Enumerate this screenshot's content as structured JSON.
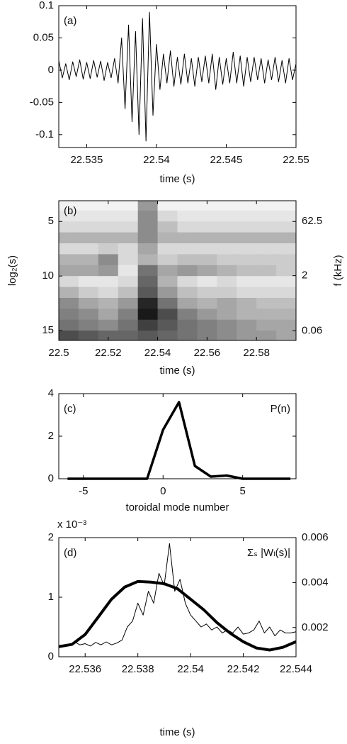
{
  "chart_data": [
    {
      "type": "line",
      "label": "(a)",
      "xlabel": "time (s)",
      "xlim": [
        22.533,
        22.55
      ],
      "xticks": [
        22.535,
        22.54,
        22.545,
        22.55
      ],
      "ylim": [
        -0.12,
        0.1
      ],
      "yticks": [
        -0.1,
        -0.05,
        0,
        0.05,
        0.1
      ],
      "series": [
        {
          "color": "#000000",
          "line_width": 1,
          "x": [
            22.533,
            22.53325,
            22.5335,
            22.53375,
            22.534,
            22.53425,
            22.5345,
            22.53475,
            22.535,
            22.53525,
            22.5355,
            22.53575,
            22.536,
            22.53625,
            22.5365,
            22.53675,
            22.537,
            22.53725,
            22.5375,
            22.53775,
            22.538,
            22.53825,
            22.5385,
            22.53875,
            22.539,
            22.53925,
            22.5395,
            22.53975,
            22.54,
            22.54025,
            22.5405,
            22.54075,
            22.541,
            22.54125,
            22.5415,
            22.54175,
            22.542,
            22.54225,
            22.5425,
            22.54275,
            22.543,
            22.54325,
            22.5435,
            22.54375,
            22.544,
            22.54425,
            22.5445,
            22.54475,
            22.545,
            22.54525,
            22.5455,
            22.54575,
            22.546,
            22.54625,
            22.5465,
            22.54675,
            22.547,
            22.54725,
            22.5475,
            22.54775,
            22.548,
            22.54825,
            22.5485,
            22.54875,
            22.549,
            22.54925,
            22.5495,
            22.54975,
            22.55
          ],
          "values": [
            0.015,
            -0.012,
            0.01,
            -0.015,
            0.013,
            -0.01,
            0.016,
            -0.014,
            0.012,
            -0.013,
            0.015,
            -0.011,
            0.014,
            -0.016,
            0.012,
            -0.012,
            0.018,
            -0.02,
            0.05,
            -0.06,
            0.07,
            -0.08,
            0.06,
            -0.1,
            0.08,
            -0.11,
            0.09,
            -0.07,
            0.04,
            -0.03,
            0.025,
            -0.02,
            0.03,
            -0.025,
            0.02,
            -0.022,
            0.025,
            -0.02,
            0.018,
            -0.025,
            0.02,
            -0.018,
            0.022,
            -0.02,
            0.025,
            -0.03,
            0.02,
            -0.022,
            0.018,
            -0.02,
            0.028,
            -0.02,
            0.022,
            -0.025,
            0.02,
            -0.018,
            0.02,
            -0.015,
            0.018,
            -0.02,
            0.016,
            -0.015,
            0.02,
            -0.018,
            0.015,
            -0.02,
            0.018,
            -0.015,
            0.01
          ]
        }
      ]
    },
    {
      "type": "heatmap",
      "label": "(b)",
      "xlabel": "time (s)",
      "ylabel": "log₂(s)",
      "y2label": "f (kHz)",
      "xlim": [
        22.5,
        22.596
      ],
      "xticks": [
        22.5,
        22.52,
        22.54,
        22.56,
        22.58
      ],
      "ylim": [
        3.1,
        15.9
      ],
      "y_inverted": true,
      "yticks": [
        5,
        10,
        15
      ],
      "y2lim": [
        0.0327,
        233.3
      ],
      "y2log": true,
      "y2ticks": [
        62.5,
        2,
        0.06
      ],
      "colormap": "gray",
      "x_edges": [
        22.5,
        22.508,
        22.516,
        22.524,
        22.532,
        22.54,
        22.548,
        22.556,
        22.564,
        22.572,
        22.58,
        22.588,
        22.596
      ],
      "y_edges": [
        3.1,
        4,
        5,
        6,
        7,
        8,
        9,
        10,
        11,
        12,
        13,
        14,
        15,
        15.9
      ],
      "z": [
        [
          0.05,
          0.05,
          0.05,
          0.05,
          0.4,
          0.05,
          0.05,
          0.05,
          0.05,
          0.05,
          0.05,
          0.05
        ],
        [
          0.1,
          0.1,
          0.1,
          0.1,
          0.45,
          0.15,
          0.1,
          0.1,
          0.1,
          0.1,
          0.1,
          0.1
        ],
        [
          0.15,
          0.15,
          0.15,
          0.15,
          0.45,
          0.25,
          0.15,
          0.15,
          0.15,
          0.15,
          0.15,
          0.15
        ],
        [
          0.3,
          0.3,
          0.3,
          0.3,
          0.45,
          0.3,
          0.3,
          0.3,
          0.3,
          0.3,
          0.3,
          0.3
        ],
        [
          0.15,
          0.15,
          0.2,
          0.15,
          0.35,
          0.15,
          0.15,
          0.15,
          0.15,
          0.15,
          0.15,
          0.15
        ],
        [
          0.3,
          0.3,
          0.45,
          0.15,
          0.3,
          0.2,
          0.25,
          0.25,
          0.2,
          0.2,
          0.2,
          0.2
        ],
        [
          0.35,
          0.35,
          0.4,
          0.1,
          0.55,
          0.35,
          0.4,
          0.35,
          0.3,
          0.25,
          0.25,
          0.2
        ],
        [
          0.15,
          0.1,
          0.1,
          0.15,
          0.6,
          0.3,
          0.15,
          0.1,
          0.15,
          0.1,
          0.1,
          0.1
        ],
        [
          0.3,
          0.2,
          0.15,
          0.25,
          0.65,
          0.4,
          0.25,
          0.2,
          0.2,
          0.15,
          0.15,
          0.15
        ],
        [
          0.45,
          0.35,
          0.3,
          0.4,
          0.85,
          0.55,
          0.35,
          0.3,
          0.35,
          0.3,
          0.25,
          0.25
        ],
        [
          0.5,
          0.45,
          0.35,
          0.5,
          0.9,
          0.7,
          0.5,
          0.4,
          0.35,
          0.3,
          0.3,
          0.3
        ],
        [
          0.55,
          0.5,
          0.45,
          0.55,
          0.75,
          0.65,
          0.55,
          0.5,
          0.45,
          0.4,
          0.35,
          0.35
        ],
        [
          0.7,
          0.65,
          0.6,
          0.6,
          0.65,
          0.6,
          0.55,
          0.5,
          0.45,
          0.4,
          0.4,
          0.35
        ]
      ]
    },
    {
      "type": "line",
      "label": "(c)",
      "annotation": "P(n)",
      "xlabel": "toroidal mode number",
      "xlim": [
        -6.55,
        8.35
      ],
      "xticks": [
        -5,
        0,
        5
      ],
      "ylim": [
        0,
        4
      ],
      "yticks": [
        0,
        2,
        4
      ],
      "series": [
        {
          "color": "#000000",
          "line_width": 3.5,
          "x": [
            -6,
            -5,
            -4,
            -3,
            -2,
            -1,
            0,
            1,
            2,
            3,
            4,
            5,
            6,
            7,
            8
          ],
          "values": [
            0,
            0,
            0,
            0,
            0,
            0,
            2.3,
            3.6,
            0.6,
            0.1,
            0.15,
            0,
            0,
            0,
            0
          ]
        }
      ]
    },
    {
      "type": "line",
      "label": "(d)",
      "annotation": "Σₛ |Wₗ(s)|",
      "y_multiplier": "x 10⁻³",
      "xlabel": "time (s)",
      "xlim": [
        22.535,
        22.544
      ],
      "xticks": [
        22.536,
        22.538,
        22.54,
        22.542,
        22.544
      ],
      "ylim": [
        0,
        0.002
      ],
      "yticks": [
        0,
        {
          "value": 0.001,
          "label": "1"
        },
        {
          "value": 0.002,
          "label": "2"
        }
      ],
      "y2lim": [
        0.0007,
        0.006
      ],
      "y2ticks": [
        0.002,
        0.004,
        0.006
      ],
      "series": [
        {
          "color": "#000000",
          "line_width": 1,
          "x": [
            22.5354,
            22.5356,
            22.5358,
            22.536,
            22.5362,
            22.5364,
            22.5366,
            22.5368,
            22.537,
            22.5372,
            22.5374,
            22.5376,
            22.5378,
            22.538,
            22.5382,
            22.5384,
            22.5386,
            22.5388,
            22.539,
            22.5392,
            22.5394,
            22.5396,
            22.5398,
            22.54,
            22.5402,
            22.5404,
            22.5406,
            22.5408,
            22.541,
            22.5412,
            22.5414,
            22.5416,
            22.5418,
            22.542,
            22.5422,
            22.5424,
            22.5426,
            22.5428,
            22.543,
            22.5432,
            22.5434,
            22.5436,
            22.5438,
            22.544
          ],
          "values": [
            0.0002,
            0.00025,
            0.0002,
            0.00022,
            0.00018,
            0.00024,
            0.0002,
            0.00025,
            0.0002,
            0.00023,
            0.00028,
            0.0005,
            0.0006,
            0.0009,
            0.0007,
            0.0011,
            0.0009,
            0.0014,
            0.0012,
            0.0019,
            0.0011,
            0.0013,
            0.0009,
            0.0007,
            0.0006,
            0.0005,
            0.00055,
            0.00045,
            0.0005,
            0.0004,
            0.00045,
            0.0004,
            0.0005,
            0.00038,
            0.0004,
            0.00045,
            0.0006,
            0.0004,
            0.0005,
            0.00035,
            0.00045,
            0.0004,
            0.0004,
            0.00042
          ]
        },
        {
          "color": "#000000",
          "line_width": 4,
          "axis": "y2",
          "x": [
            22.535,
            22.5355,
            22.536,
            22.5365,
            22.537,
            22.5375,
            22.538,
            22.5385,
            22.539,
            22.5395,
            22.54,
            22.5405,
            22.541,
            22.5415,
            22.542,
            22.5425,
            22.543,
            22.5435,
            22.544
          ],
          "values": [
            0.00115,
            0.00125,
            0.00169,
            0.00247,
            0.00326,
            0.0038,
            0.00405,
            0.00402,
            0.00395,
            0.00373,
            0.00326,
            0.00279,
            0.00222,
            0.00175,
            0.00137,
            0.00109,
            0.001,
            0.00112,
            0.00137
          ]
        }
      ]
    }
  ]
}
